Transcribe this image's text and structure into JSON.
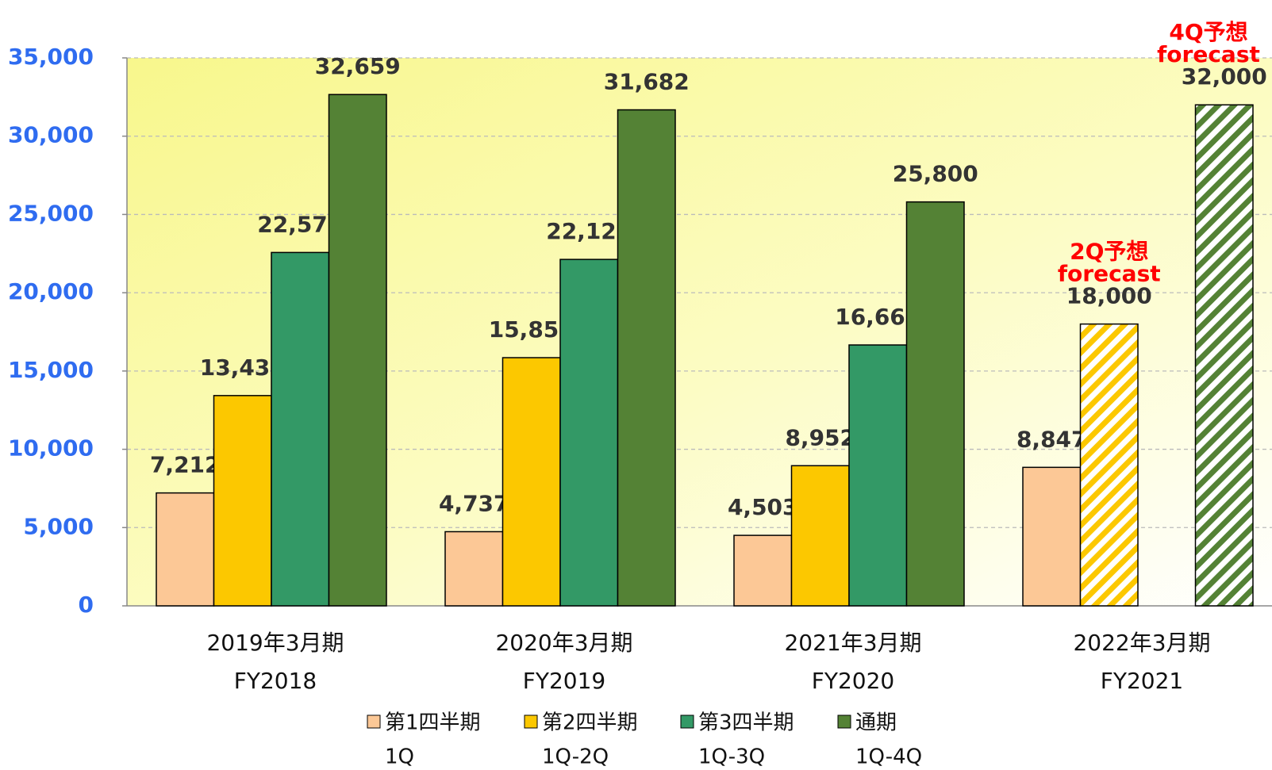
{
  "chart_data": {
    "type": "bar",
    "categories": [
      [
        "2019年3月期",
        "FY2018"
      ],
      [
        "2020年3月期",
        "FY2019"
      ],
      [
        "2021年3月期",
        "FY2020"
      ],
      [
        "2022年3月期",
        "FY2021"
      ]
    ],
    "series": [
      {
        "name": "第1四半期",
        "name_en": "1Q",
        "color": "#fcc896",
        "values": [
          7212,
          4737,
          4503,
          8847
        ],
        "value_labels": [
          "7,212",
          "4,737",
          "4,503",
          "8,847"
        ]
      },
      {
        "name": "第2四半期",
        "name_en": "1Q-2Q",
        "color": "#fcc800",
        "values": [
          13431,
          15852,
          8952,
          18000
        ],
        "value_labels": [
          "13,431",
          "15,852",
          "8,952",
          "18,000"
        ]
      },
      {
        "name": "第3四半期",
        "name_en": "1Q-3Q",
        "color": "#339966",
        "values": [
          22571,
          22128,
          16664,
          null
        ],
        "value_labels": [
          "22,571",
          "22,128",
          "16,664",
          null
        ]
      },
      {
        "name": "通期",
        "name_en": "1Q-4Q",
        "color": "#548235",
        "values": [
          32659,
          31682,
          25800,
          32000
        ],
        "value_labels": [
          "32,659",
          "31,682",
          "25,800",
          "32,000"
        ]
      }
    ],
    "annotations": [
      {
        "text": [
          "2Q予想",
          "forecast"
        ],
        "series": 1,
        "category": 3
      },
      {
        "text": [
          "4Q予想",
          "forecast"
        ],
        "series": 3,
        "category": 3
      }
    ],
    "ylim": [
      0,
      35000
    ],
    "yticks": [
      {
        "value": 0,
        "label": "0"
      },
      {
        "value": 5000,
        "label": "5,000"
      },
      {
        "value": 10000,
        "label": "10,000"
      },
      {
        "value": 15000,
        "label": "15,000"
      },
      {
        "value": 20000,
        "label": "20,000"
      },
      {
        "value": 25000,
        "label": "25,000"
      },
      {
        "value": 30000,
        "label": "30,000"
      },
      {
        "value": 35000,
        "label": "35,000"
      }
    ],
    "grid": true
  }
}
